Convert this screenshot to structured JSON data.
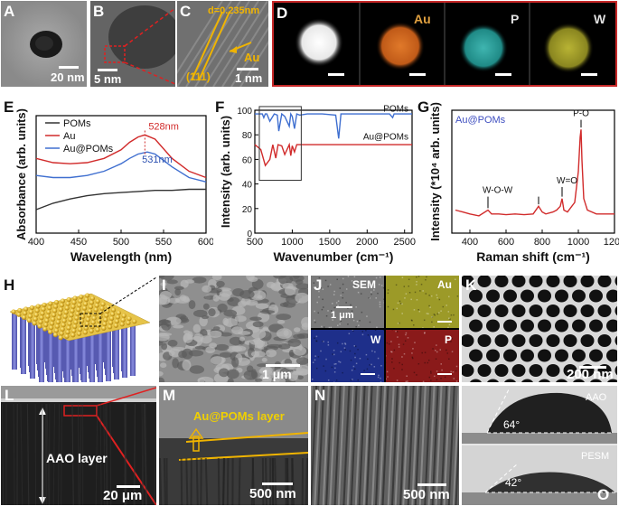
{
  "panels": {
    "A": {
      "label": "A",
      "scale": "20 nm"
    },
    "B": {
      "label": "B",
      "scale": "5 nm"
    },
    "C": {
      "label": "C",
      "scale": "1 nm",
      "d_spacing": "d=0.235nm",
      "plane": "(111)",
      "element": "Au"
    },
    "D": {
      "label": "D",
      "maps": [
        "Au",
        "P",
        "W"
      ]
    },
    "H": {
      "label": "H"
    },
    "I": {
      "label": "I",
      "scale": "1 μm"
    },
    "J": {
      "label": "J",
      "tiles": [
        "SEM",
        "Au",
        "W",
        "P"
      ],
      "scale": "1 μm"
    },
    "K": {
      "label": "K",
      "scale": "200 nm"
    },
    "L": {
      "label": "L",
      "layer": "AAO layer",
      "scale": "20 μm"
    },
    "M": {
      "label": "M",
      "layer": "Au@POMs layer",
      "scale": "500 nm"
    },
    "N": {
      "label": "N",
      "scale": "500 nm"
    },
    "O": {
      "label": "O",
      "top_label": "AAO",
      "top_angle": "64°",
      "bottom_label": "PESM",
      "bottom_angle": "42°"
    }
  },
  "colors": {
    "au": "#c8b42a",
    "au_map": "#e0792a",
    "p_map": "#3fb5b0",
    "w_map": "#b8b334",
    "w_sem": "#1e2f8a",
    "p_sem": "#8a1a1a",
    "red": "#d12b2b",
    "blue": "#3f6fd0"
  },
  "chart_data": [
    {
      "panel": "E",
      "type": "line",
      "xlabel": "Wavelength (nm)",
      "ylabel": "Absorbance (arb. units)",
      "xlim": [
        400,
        600
      ],
      "x_ticks": [
        400,
        450,
        500,
        550,
        600
      ],
      "legend": [
        "POMs",
        "Au",
        "Au@POMs"
      ],
      "annotations": [
        {
          "text": "528nm",
          "x": 528
        },
        {
          "text": "531nm",
          "x": 531
        }
      ],
      "series": [
        {
          "name": "POMs",
          "color": "#333333",
          "x": [
            400,
            420,
            440,
            460,
            480,
            500,
            520,
            540,
            560,
            580,
            600
          ],
          "y": [
            0.22,
            0.28,
            0.32,
            0.35,
            0.37,
            0.38,
            0.39,
            0.4,
            0.4,
            0.41,
            0.41
          ]
        },
        {
          "name": "Au",
          "color": "#d12b2b",
          "x": [
            400,
            420,
            440,
            460,
            480,
            500,
            510,
            520,
            528,
            540,
            560,
            580,
            600
          ],
          "y": [
            0.7,
            0.66,
            0.65,
            0.66,
            0.7,
            0.78,
            0.85,
            0.9,
            0.92,
            0.88,
            0.7,
            0.58,
            0.52
          ]
        },
        {
          "name": "Au@POMs",
          "color": "#3f6fd0",
          "x": [
            400,
            420,
            440,
            460,
            480,
            500,
            510,
            520,
            531,
            540,
            560,
            580,
            600
          ],
          "y": [
            0.54,
            0.52,
            0.52,
            0.54,
            0.58,
            0.65,
            0.7,
            0.74,
            0.76,
            0.74,
            0.62,
            0.52,
            0.48
          ]
        }
      ]
    },
    {
      "panel": "F",
      "type": "line",
      "xlabel": "Wavenumber (cm⁻¹)",
      "ylabel": "Intensity (arb. units)",
      "xlim": [
        500,
        2600
      ],
      "ylim": [
        0,
        100
      ],
      "x_ticks": [
        500,
        1000,
        1500,
        2000,
        2500
      ],
      "y_ticks": [
        0,
        20,
        40,
        60,
        80,
        100
      ],
      "series": [
        {
          "name": "POMs",
          "color": "#3f6fd0",
          "x": [
            500,
            600,
            620,
            640,
            660,
            700,
            760,
            800,
            820,
            860,
            900,
            960,
            980,
            1000,
            1030,
            1060,
            1100,
            1200,
            1400,
            1580,
            1620,
            1650,
            1700,
            1800,
            2000,
            2300,
            2340,
            2360,
            2600
          ],
          "y": [
            97,
            97,
            94,
            97,
            97,
            91,
            97,
            96,
            83,
            97,
            95,
            87,
            97,
            95,
            85,
            97,
            96,
            97,
            97,
            96,
            77,
            97,
            97,
            97,
            97,
            97,
            94,
            97,
            97
          ]
        },
        {
          "name": "Au@POMs",
          "color": "#d12b2b",
          "x": [
            500,
            580,
            640,
            700,
            740,
            780,
            810,
            860,
            900,
            960,
            980,
            1000,
            1030,
            1060,
            1100,
            1200,
            1600,
            2000,
            2600
          ],
          "y": [
            72,
            68,
            55,
            60,
            72,
            61,
            72,
            71,
            64,
            72,
            63,
            71,
            66,
            72,
            72,
            72,
            72,
            72,
            72
          ]
        }
      ]
    },
    {
      "panel": "G",
      "type": "line",
      "series_label": "Au@POMs",
      "xlabel": "Raman shift (cm⁻¹)",
      "ylabel": "Intensity (*10⁴ arb. units)",
      "xlim": [
        300,
        1200
      ],
      "x_ticks": [
        400,
        600,
        800,
        1000,
        1200
      ],
      "annotations": [
        {
          "text": "W-O-W",
          "x": 500
        },
        {
          "text": "W=O",
          "x": 910
        },
        {
          "text": "P-O",
          "x": 1015
        }
      ],
      "series": [
        {
          "name": "Au@POMs",
          "color": "#d12b2b",
          "x": [
            320,
            360,
            400,
            450,
            500,
            520,
            560,
            600,
            650,
            700,
            750,
            780,
            800,
            820,
            860,
            880,
            900,
            910,
            920,
            940,
            980,
            1000,
            1010,
            1015,
            1020,
            1030,
            1050,
            1100,
            1150,
            1200
          ],
          "y": [
            1.6,
            1.55,
            1.5,
            1.45,
            1.6,
            1.5,
            1.5,
            1.48,
            1.5,
            1.48,
            1.5,
            1.7,
            1.55,
            1.5,
            1.55,
            1.6,
            1.7,
            1.9,
            1.6,
            1.55,
            1.8,
            2.6,
            3.5,
            3.7,
            2.9,
            1.9,
            1.6,
            1.5,
            1.5,
            1.5
          ]
        }
      ]
    }
  ]
}
